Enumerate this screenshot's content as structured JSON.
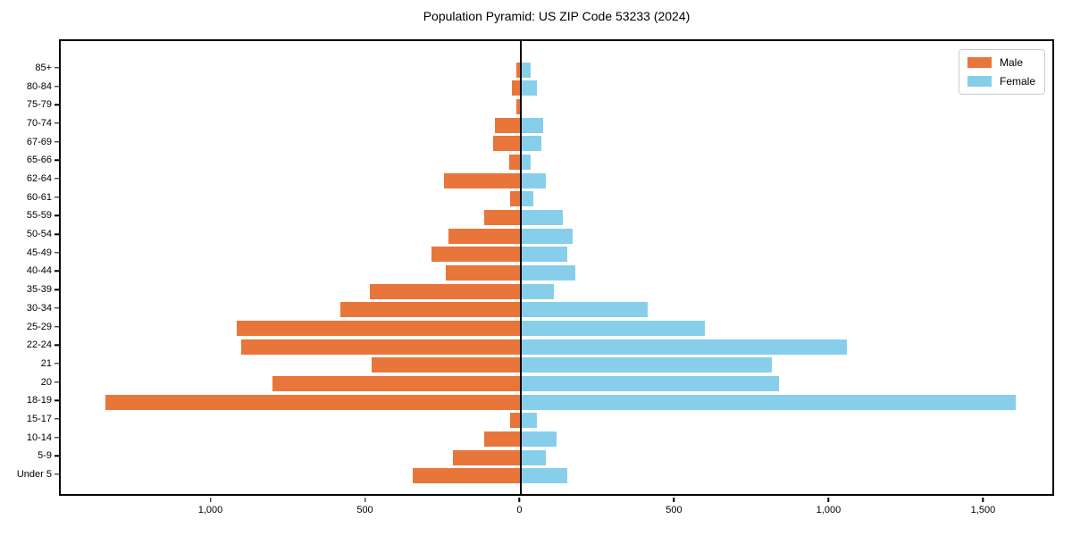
{
  "title": "Population Pyramid: US ZIP Code 53233 (2024)",
  "chart_data": {
    "type": "bar",
    "subtype": "population-pyramid",
    "orientation": "horizontal",
    "title": "Population Pyramid: US ZIP Code 53233 (2024)",
    "xlabel": "",
    "ylabel": "",
    "grid": false,
    "categories": [
      "85+",
      "80-84",
      "75-79",
      "70-74",
      "67-69",
      "65-66",
      "62-64",
      "60-61",
      "55-59",
      "50-54",
      "45-49",
      "40-44",
      "35-39",
      "30-34",
      "25-29",
      "22-24",
      "21",
      "20",
      "18-19",
      "15-17",
      "10-14",
      "5-9",
      "Under 5"
    ],
    "series": [
      {
        "name": "Male",
        "color": "#e8763b",
        "side": "left",
        "values": [
          15,
          30,
          15,
          85,
          90,
          40,
          250,
          35,
          120,
          235,
          290,
          245,
          490,
          585,
          920,
          905,
          485,
          805,
          1345,
          35,
          120,
          220,
          350
        ]
      },
      {
        "name": "Female",
        "color": "#87ceeb",
        "side": "right",
        "values": [
          30,
          50,
          0,
          70,
          65,
          30,
          80,
          40,
          135,
          165,
          150,
          175,
          105,
          410,
          595,
          1055,
          810,
          835,
          1600,
          50,
          115,
          80,
          150
        ]
      }
    ],
    "xlim": [
      -1490,
      1730
    ],
    "xticks": [
      {
        "value": -1000,
        "label": "1,000"
      },
      {
        "value": -500,
        "label": "500"
      },
      {
        "value": 0,
        "label": "0"
      },
      {
        "value": 500,
        "label": "500"
      },
      {
        "value": 1000,
        "label": "1,000"
      },
      {
        "value": 1500,
        "label": "1,500"
      }
    ],
    "zero_line_color": "#000000",
    "legend": {
      "position": "upper right",
      "entries": [
        {
          "label": "Male",
          "color": "#e8763b"
        },
        {
          "label": "Female",
          "color": "#87ceeb"
        }
      ]
    }
  }
}
